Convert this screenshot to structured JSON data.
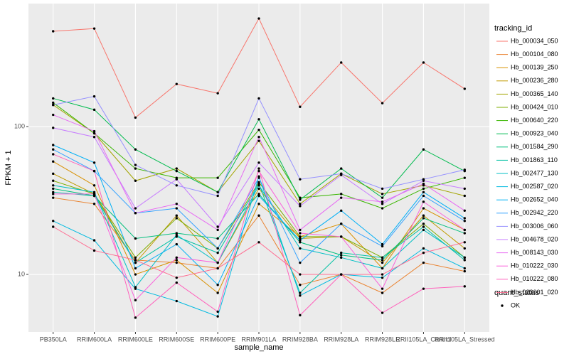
{
  "chart_data": {
    "type": "line",
    "x_label": "sample_name",
    "y_label": "FPKM + 1",
    "legend_title": "tracking_id",
    "legend_position": "right",
    "log_scale": true,
    "grid": true,
    "point_color": "#000000",
    "shape_legend_title": "quant_status",
    "shape_legend_labels": [
      "OK"
    ],
    "categories": [
      "PB350LA",
      "RRIM600LA",
      "RRIM600LE",
      "RRIM600SE",
      "RRIM600PE",
      "RRIM901LA",
      "RRIM928BA",
      "RRIM928LA",
      "RRIM928LE",
      "RRII105LA_Control",
      "RRII105LA_Stressed"
    ],
    "ylim": [
      4.08,
      679
    ],
    "yticks": [
      10,
      100
    ],
    "series": [
      {
        "name": "Hb_000034_050",
        "color": "#F8766D",
        "values": [
          441,
          460,
          115,
          194,
          168,
          538,
          136,
          271,
          144,
          271,
          180
        ]
      },
      {
        "name": "Hb_000104_080",
        "color": "#EA8331",
        "values": [
          33,
          30,
          12.5,
          12,
          11,
          25,
          8.5,
          10,
          7.5,
          12,
          10.5
        ]
      },
      {
        "name": "Hb_000139_250",
        "color": "#D89000",
        "values": [
          58,
          40,
          10,
          12.5,
          7.5,
          30,
          18,
          22,
          11,
          28,
          20
        ]
      },
      {
        "name": "Hb_000236_280",
        "color": "#C09B00",
        "values": [
          48,
          35,
          12,
          25,
          12,
          38,
          17.5,
          18,
          12,
          25,
          15
        ]
      },
      {
        "name": "Hb_000365_140",
        "color": "#A3A500",
        "values": [
          140,
          90,
          43,
          52,
          36,
          80,
          30,
          48,
          35,
          40,
          34
        ]
      },
      {
        "name": "Hb_000424_010",
        "color": "#7CAE00",
        "values": [
          43,
          35,
          13,
          24,
          15,
          42,
          18,
          18,
          13,
          22,
          13
        ]
      },
      {
        "name": "Hb_000640_220",
        "color": "#39B600",
        "values": [
          145,
          90,
          52,
          45,
          45,
          95,
          33,
          35,
          28,
          38,
          45
        ]
      },
      {
        "name": "Hb_000923_040",
        "color": "#00BB4E",
        "values": [
          155,
          130,
          70,
          50,
          36,
          112,
          32,
          52,
          33,
          70,
          50
        ]
      },
      {
        "name": "Hb_001584_290",
        "color": "#00BF7D",
        "values": [
          38,
          34,
          17.5,
          19,
          17.5,
          35,
          16.5,
          13.5,
          12.5,
          24,
          19
        ]
      },
      {
        "name": "Hb_001863_110",
        "color": "#00C1A3",
        "values": [
          36,
          34,
          12,
          18,
          14,
          41,
          7.5,
          14,
          13,
          21,
          12.5
        ]
      },
      {
        "name": "Hb_002477_130",
        "color": "#00BFC4",
        "values": [
          40,
          36,
          8.2,
          18.5,
          12,
          40,
          15,
          13,
          11,
          20,
          13
        ]
      },
      {
        "name": "Hb_002587_020",
        "color": "#00BAE0",
        "values": [
          23,
          17,
          8,
          6.6,
          5.2,
          46,
          7.2,
          10,
          9.5,
          15,
          11
        ]
      },
      {
        "name": "Hb_002652_040",
        "color": "#00B0F6",
        "values": [
          75,
          57,
          11,
          16,
          8.5,
          34,
          17,
          27,
          16,
          36,
          24
        ]
      },
      {
        "name": "Hb_002942_220",
        "color": "#35A2FF",
        "values": [
          70,
          50,
          26,
          28,
          15,
          45,
          12,
          22,
          15.5,
          34,
          23
        ]
      },
      {
        "name": "Hb_003006_060",
        "color": "#9590FF",
        "values": [
          140,
          160,
          55,
          40,
          34,
          155,
          44,
          48,
          38,
          44,
          51
        ]
      },
      {
        "name": "Hb_004678_020",
        "color": "#C77CFF",
        "values": [
          98,
          85,
          28,
          44,
          21,
          57,
          29,
          47,
          30,
          43,
          38
        ]
      },
      {
        "name": "Hb_008143_030",
        "color": "#E76BF3",
        "values": [
          120,
          93,
          26,
          30,
          20,
          85,
          20,
          33,
          31,
          41,
          27
        ]
      },
      {
        "name": "Hb_010222_030",
        "color": "#FA62DB",
        "values": [
          35,
          35,
          6.7,
          13,
          12,
          50,
          19,
          18,
          8,
          31,
          20
        ]
      },
      {
        "name": "Hb_010222_080",
        "color": "#FF62BC",
        "values": [
          65,
          50,
          5.1,
          8.8,
          5.6,
          52,
          5.3,
          10,
          5.5,
          8,
          8.3
        ]
      },
      {
        "name": "Hb_023001_020",
        "color": "#FF6C91",
        "values": [
          21,
          14.5,
          12.5,
          9.5,
          11,
          16.5,
          10,
          10,
          10,
          14,
          16.5
        ]
      }
    ]
  }
}
